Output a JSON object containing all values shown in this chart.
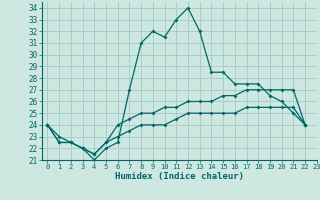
{
  "xlabel": "Humidex (Indice chaleur)",
  "bg_color": "#cce8e0",
  "grid_color": "#a8cec8",
  "line_color": "#006868",
  "xlim": [
    -0.5,
    23
  ],
  "ylim": [
    21,
    34.5
  ],
  "xticks": [
    0,
    1,
    2,
    3,
    4,
    5,
    6,
    7,
    8,
    9,
    10,
    11,
    12,
    13,
    14,
    15,
    16,
    17,
    18,
    19,
    20,
    21,
    22,
    23
  ],
  "yticks": [
    21,
    22,
    23,
    24,
    25,
    26,
    27,
    28,
    29,
    30,
    31,
    32,
    33,
    34
  ],
  "series1": [
    24,
    23,
    22.5,
    22,
    21,
    22,
    22.5,
    27,
    31,
    32,
    31.5,
    33,
    34,
    32,
    28.5,
    28.5,
    27.5,
    27.5,
    27.5,
    26.5,
    26,
    25,
    24
  ],
  "series2": [
    24,
    22.5,
    22.5,
    22,
    21.5,
    22.5,
    24,
    24.5,
    25,
    25,
    25.5,
    25.5,
    26,
    26,
    26,
    26.5,
    26.5,
    27,
    27,
    27,
    27,
    27,
    24
  ],
  "series3": [
    24,
    22.5,
    22.5,
    22,
    21.5,
    22.5,
    23,
    23.5,
    24,
    24,
    24,
    24.5,
    25,
    25,
    25,
    25,
    25,
    25.5,
    25.5,
    25.5,
    25.5,
    25.5,
    24
  ],
  "x_values": [
    0,
    1,
    2,
    3,
    4,
    5,
    6,
    7,
    8,
    9,
    10,
    11,
    12,
    13,
    14,
    15,
    16,
    17,
    18,
    19,
    20,
    21,
    22
  ]
}
